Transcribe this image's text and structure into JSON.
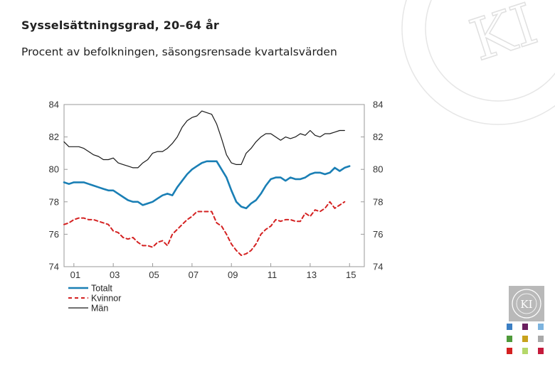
{
  "title": "Sysselsättningsgrad, 20–64 år",
  "subtitle": "Procent av befolkningen, säsongsrensade kvartalsvärden",
  "logo": {
    "text": "KI",
    "ring_text": "KONJUNKTURINSTITUTET"
  },
  "colors": {
    "totalt": "#1a7fb5",
    "kvinnor": "#d42121",
    "man": "#1a1a1a",
    "axis": "#9a9a9a",
    "logo_bg": "#b9b9b9",
    "watermark": "#e4e4e4"
  },
  "swatches": [
    "#3b7fc4",
    "#6a1f5f",
    "#7db4df",
    "#4f9a3a",
    "#c8a21c",
    "#a9a9a9",
    "#d42121",
    "#b5d86a",
    "#c41a3b"
  ],
  "chart_data": {
    "type": "line",
    "xlabel": "",
    "ylabel": "",
    "xlim": [
      2000.5,
      2015.75
    ],
    "ylim": [
      74,
      84
    ],
    "yticks": [
      74,
      76,
      78,
      80,
      82,
      84
    ],
    "xticks": [
      {
        "value": 2001,
        "label": "01"
      },
      {
        "value": 2003,
        "label": "03"
      },
      {
        "value": 2005,
        "label": "05"
      },
      {
        "value": 2007,
        "label": "07"
      },
      {
        "value": 2009,
        "label": "09"
      },
      {
        "value": 2011,
        "label": "11"
      },
      {
        "value": 2013,
        "label": "13"
      },
      {
        "value": 2015,
        "label": "15"
      }
    ],
    "legend_position": "bottom-left",
    "x_start": 2000.5,
    "x_step": 0.25,
    "series": [
      {
        "name": "Totalt",
        "style": "solid",
        "width": 2.6,
        "values": [
          79.2,
          79.1,
          79.2,
          79.2,
          79.2,
          79.1,
          79.0,
          78.9,
          78.8,
          78.7,
          78.7,
          78.5,
          78.3,
          78.1,
          78.0,
          78.0,
          77.8,
          77.9,
          78.0,
          78.2,
          78.4,
          78.5,
          78.4,
          78.9,
          79.3,
          79.7,
          80.0,
          80.2,
          80.4,
          80.5,
          80.5,
          80.5,
          80.0,
          79.5,
          78.7,
          78.0,
          77.7,
          77.6,
          77.9,
          78.1,
          78.5,
          79.0,
          79.4,
          79.5,
          79.5,
          79.3,
          79.5,
          79.4,
          79.4,
          79.5,
          79.7,
          79.8,
          79.8,
          79.7,
          79.8,
          80.1,
          79.9,
          80.1,
          80.2
        ]
      },
      {
        "name": "Kvinnor",
        "style": "dashed",
        "width": 2,
        "values": [
          76.6,
          76.7,
          76.9,
          77.0,
          77.0,
          76.9,
          76.9,
          76.8,
          76.7,
          76.6,
          76.2,
          76.1,
          75.8,
          75.7,
          75.8,
          75.5,
          75.3,
          75.3,
          75.2,
          75.5,
          75.6,
          75.3,
          76.0,
          76.3,
          76.6,
          76.9,
          77.1,
          77.4,
          77.4,
          77.4,
          77.4,
          76.7,
          76.5,
          76.0,
          75.4,
          75.0,
          74.7,
          74.8,
          75.0,
          75.4,
          76.0,
          76.3,
          76.5,
          76.9,
          76.8,
          76.9,
          76.9,
          76.8,
          76.8,
          77.3,
          77.1,
          77.5,
          77.4,
          77.6,
          78.0,
          77.6,
          77.8,
          78.0
        ]
      },
      {
        "name": "Män",
        "style": "solid",
        "width": 1.2,
        "values": [
          81.7,
          81.4,
          81.4,
          81.4,
          81.3,
          81.1,
          80.9,
          80.8,
          80.6,
          80.6,
          80.7,
          80.4,
          80.3,
          80.2,
          80.1,
          80.1,
          80.4,
          80.6,
          81.0,
          81.1,
          81.1,
          81.3,
          81.6,
          82.0,
          82.6,
          83.0,
          83.2,
          83.3,
          83.6,
          83.5,
          83.4,
          82.8,
          81.9,
          80.9,
          80.4,
          80.3,
          80.3,
          81.0,
          81.3,
          81.7,
          82.0,
          82.2,
          82.2,
          82.0,
          81.8,
          82.0,
          81.9,
          82.0,
          82.2,
          82.1,
          82.4,
          82.1,
          82.0,
          82.2,
          82.2,
          82.3,
          82.4,
          82.4
        ]
      }
    ]
  }
}
